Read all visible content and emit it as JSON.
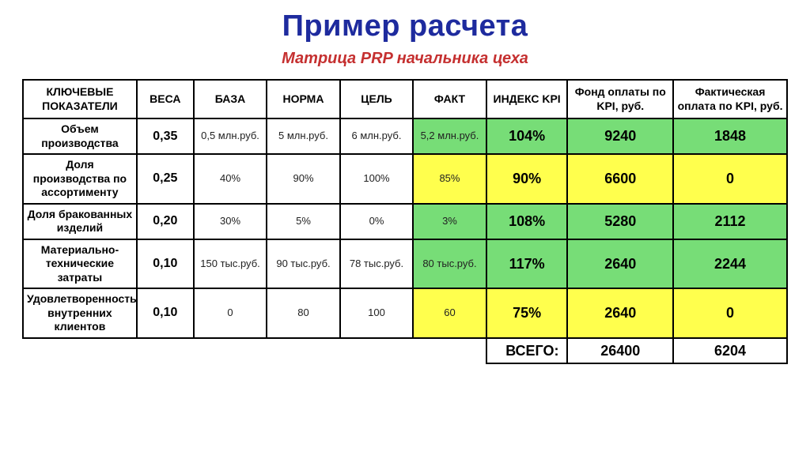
{
  "title": "Пример расчета",
  "subtitle": "Матрица PRP начальника цеха",
  "colors": {
    "title": "#1e2b9e",
    "subtitle": "#c53030",
    "green": "#77dd77",
    "yellow": "#ffff4d",
    "border": "#000000",
    "bg": "#ffffff"
  },
  "table": {
    "headers": [
      "КЛЮЧЕВЫЕ ПОКАЗАТЕЛИ",
      "ВЕСА",
      "БАЗА",
      "НОРМА",
      "ЦЕЛЬ",
      "ФАКТ",
      "ИНДЕКС KPI",
      "Фонд оплаты по KPI, руб.",
      "Фактическая оплата по KPI, руб."
    ],
    "rows": [
      {
        "label": "Объем производства",
        "weight": "0,35",
        "base": "0,5 млн.руб.",
        "norm": "5 млн.руб.",
        "goal": "6 млн.руб.",
        "fact": "5,2 млн.руб.",
        "fact_color": "green",
        "index": "104%",
        "index_color": "green",
        "fund": "9240",
        "fund_color": "green",
        "actual": "1848",
        "actual_color": "green"
      },
      {
        "label": "Доля производства по ассортименту",
        "weight": "0,25",
        "base": "40%",
        "norm": "90%",
        "goal": "100%",
        "fact": "85%",
        "fact_color": "yellow",
        "index": "90%",
        "index_color": "yellow",
        "fund": "6600",
        "fund_color": "yellow",
        "actual": "0",
        "actual_color": "yellow"
      },
      {
        "label": "Доля бракованных изделий",
        "weight": "0,20",
        "base": "30%",
        "norm": "5%",
        "goal": "0%",
        "fact": "3%",
        "fact_color": "green",
        "index": "108%",
        "index_color": "green",
        "fund": "5280",
        "fund_color": "green",
        "actual": "2112",
        "actual_color": "green"
      },
      {
        "label": "Материально-технические затраты",
        "weight": "0,10",
        "base": "150 тыс.руб.",
        "norm": "90 тыс.руб.",
        "goal": "78 тыс.руб.",
        "fact": "80 тыс.руб.",
        "fact_color": "green",
        "index": "117%",
        "index_color": "green",
        "fund": "2640",
        "fund_color": "green",
        "actual": "2244",
        "actual_color": "green"
      },
      {
        "label": "Удовлетворенность внутренних клиентов",
        "weight": "0,10",
        "base": "0",
        "norm": "80",
        "goal": "100",
        "fact": "60",
        "fact_color": "yellow",
        "index": "75%",
        "index_color": "yellow",
        "fund": "2640",
        "fund_color": "yellow",
        "actual": "0",
        "actual_color": "yellow"
      }
    ],
    "total_label": "ВСЕГО:",
    "total_fund": "26400",
    "total_actual": "6204"
  }
}
